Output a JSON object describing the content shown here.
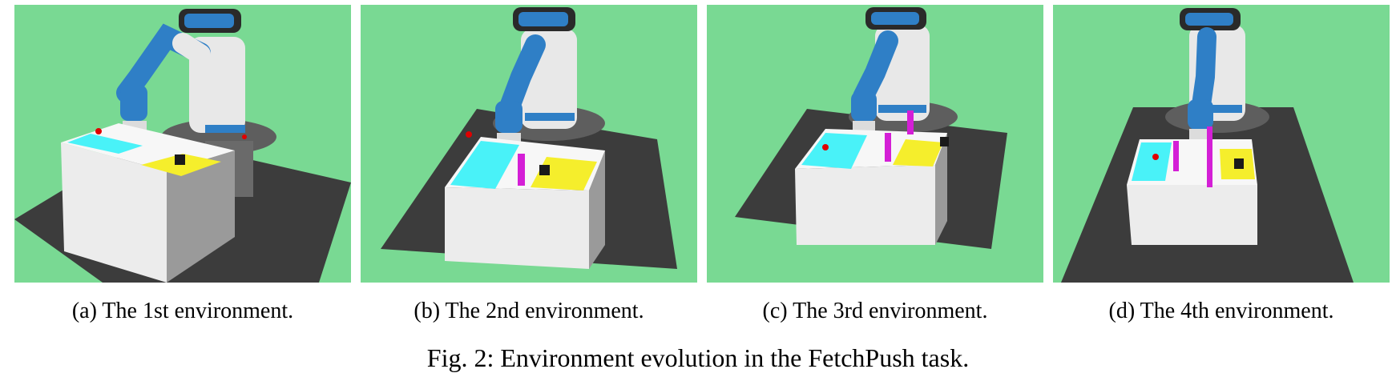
{
  "figure": {
    "caption": "Fig. 2: Environment evolution in the FetchPush task.",
    "subfigures": [
      {
        "caption": "(a) The 1st environment."
      },
      {
        "caption": "(b) The 2nd environment."
      },
      {
        "caption": "(c) The 3rd environment."
      },
      {
        "caption": "(d) The 4th environment."
      }
    ]
  },
  "colors": {
    "background_green": "#79d993",
    "floor": "#3c3c3c",
    "table_top": "#f7f7f7",
    "table_side": "#9a9a9a",
    "goal_cyan": "#49f2f8",
    "target_yellow": "#f5ee2c",
    "wall_magenta": "#d41fd6",
    "arm_blue": "#2f7fc6",
    "robot_white": "#e8e8e8",
    "goal_red": "#e00000",
    "block": "#1a1a1a"
  }
}
